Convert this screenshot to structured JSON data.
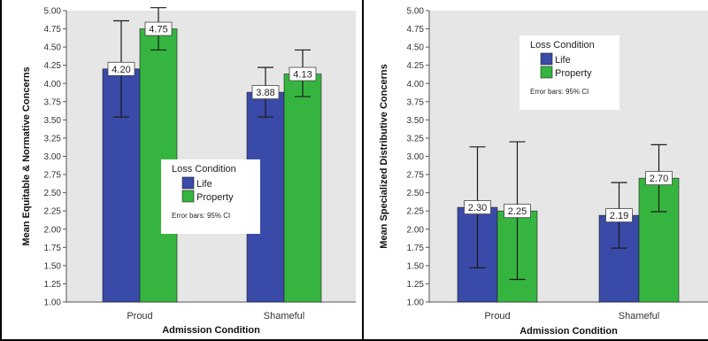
{
  "colors": {
    "plot_background": "#e6e6e6",
    "life": "#3a4aa8",
    "property": "#35b53f",
    "error_bar": "#1a1a1a",
    "label_box": "#ffffff"
  },
  "chart_data": [
    {
      "type": "bar",
      "categories": [
        "Proud",
        "Shameful"
      ],
      "xlabel": "Admission Condition",
      "ylabel": "Mean Equitable & Normative Concerns",
      "ylim": [
        1.0,
        5.0
      ],
      "yticks": [
        "1.00",
        "1.25",
        "1.50",
        "1.75",
        "2.00",
        "2.25",
        "2.50",
        "2.75",
        "3.00",
        "3.25",
        "3.50",
        "3.75",
        "4.00",
        "4.25",
        "4.50",
        "4.75",
        "5.00"
      ],
      "grid": false,
      "legend": {
        "title": "Loss Condition",
        "note": "Error bars: 95% CI",
        "placement": "center-bottom"
      },
      "series": [
        {
          "name": "Life",
          "values": [
            4.2,
            3.88
          ],
          "labels": [
            "4.20",
            "3.88"
          ],
          "ci_low": [
            3.54,
            3.54
          ],
          "ci_high": [
            4.86,
            4.22
          ]
        },
        {
          "name": "Property",
          "values": [
            4.75,
            4.13
          ],
          "labels": [
            "4.75",
            "4.13"
          ],
          "ci_low": [
            4.46,
            3.82
          ],
          "ci_high": [
            5.04,
            4.46
          ]
        }
      ]
    },
    {
      "type": "bar",
      "categories": [
        "Proud",
        "Shameful"
      ],
      "xlabel": "Admission Condition",
      "ylabel": "Mean Specialized Distributive Concerns",
      "ylim": [
        1.0,
        5.0
      ],
      "yticks": [
        "1.00",
        "1.25",
        "1.50",
        "1.75",
        "2.00",
        "2.25",
        "2.50",
        "2.75",
        "3.00",
        "3.25",
        "3.50",
        "3.75",
        "4.00",
        "4.25",
        "4.50",
        "4.75",
        "5.00"
      ],
      "grid": false,
      "legend": {
        "title": "Loss Condition",
        "note": "Error bars: 95% CI",
        "placement": "center-top"
      },
      "series": [
        {
          "name": "Life",
          "values": [
            2.3,
            2.19
          ],
          "labels": [
            "2.30",
            "2.19"
          ],
          "ci_low": [
            1.47,
            1.74
          ],
          "ci_high": [
            3.13,
            2.64
          ]
        },
        {
          "name": "Property",
          "values": [
            2.25,
            2.7
          ],
          "labels": [
            "2.25",
            "2.70"
          ],
          "ci_low": [
            1.31,
            2.24
          ],
          "ci_high": [
            3.2,
            3.16
          ]
        }
      ]
    }
  ]
}
